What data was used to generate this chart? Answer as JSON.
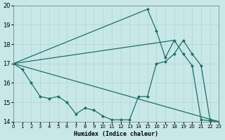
{
  "background_color": "#c8e8e8",
  "grid_color": "#afd4d0",
  "line_color": "#1e6e68",
  "xlabel": "Humidex (Indice chaleur)",
  "xlim": [
    0,
    23
  ],
  "ylim": [
    14,
    20
  ],
  "yticks": [
    14,
    15,
    16,
    17,
    18,
    19,
    20
  ],
  "xticks": [
    0,
    1,
    2,
    3,
    4,
    5,
    6,
    7,
    8,
    9,
    10,
    11,
    12,
    13,
    14,
    15,
    16,
    17,
    18,
    19,
    20,
    21,
    22,
    23
  ],
  "line1_x": [
    0,
    1,
    2,
    3,
    4,
    5,
    6,
    7,
    8,
    9,
    10,
    11,
    12,
    13,
    14,
    15,
    16,
    17,
    18,
    19,
    20,
    21,
    22,
    23
  ],
  "line1_y": [
    17.0,
    16.7,
    16.0,
    15.3,
    15.2,
    15.3,
    15.0,
    14.4,
    14.7,
    14.6,
    14.3,
    14.1,
    14.1,
    14.1,
    15.3,
    15.3,
    17.0,
    17.1,
    17.5,
    18.2,
    17.5,
    16.9,
    14.1,
    14.0
  ],
  "line2_x": [
    0,
    23
  ],
  "line2_y": [
    17.0,
    14.0
  ],
  "line3_x": [
    0,
    18
  ],
  "line3_y": [
    17.0,
    18.2
  ],
  "line4_x": [
    0,
    15,
    16,
    17,
    18,
    19,
    20,
    21,
    22,
    23
  ],
  "line4_y": [
    17.0,
    19.8,
    18.7,
    17.3,
    18.2,
    17.5,
    16.9,
    14.1,
    14.05,
    14.0
  ]
}
